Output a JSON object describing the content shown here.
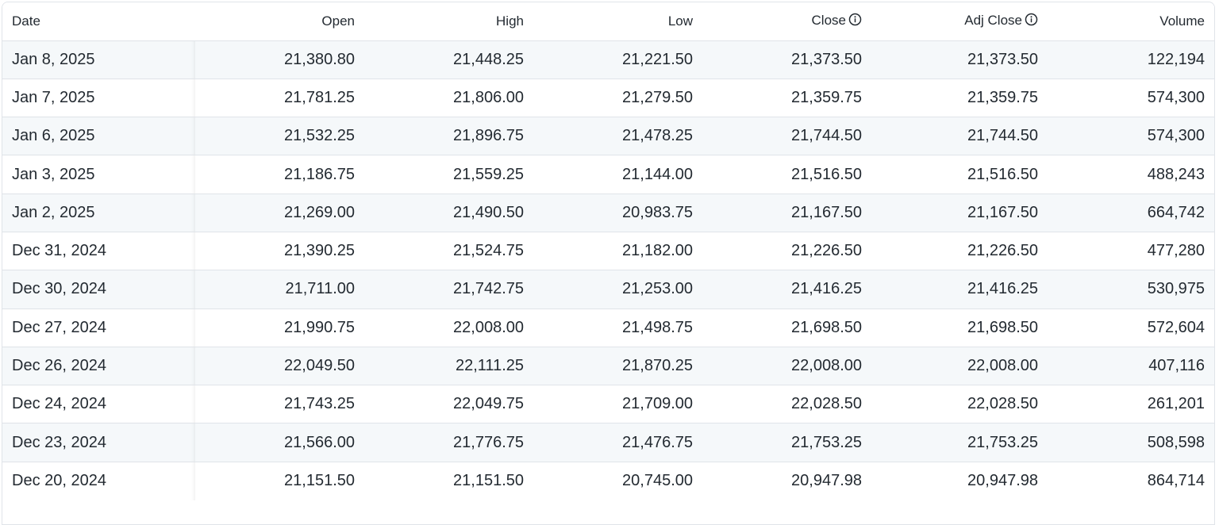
{
  "table": {
    "columns": {
      "date": "Date",
      "open": "Open",
      "high": "High",
      "low": "Low",
      "close": "Close",
      "adj_close": "Adj Close",
      "volume": "Volume"
    },
    "icons": {
      "close_info": "info-icon",
      "adj_close_info": "info-icon"
    },
    "rows": [
      {
        "date": "Jan 8, 2025",
        "open": "21,380.80",
        "high": "21,448.25",
        "low": "21,221.50",
        "close": "21,373.50",
        "adj_close": "21,373.50",
        "volume": "122,194"
      },
      {
        "date": "Jan 7, 2025",
        "open": "21,781.25",
        "high": "21,806.00",
        "low": "21,279.50",
        "close": "21,359.75",
        "adj_close": "21,359.75",
        "volume": "574,300"
      },
      {
        "date": "Jan 6, 2025",
        "open": "21,532.25",
        "high": "21,896.75",
        "low": "21,478.25",
        "close": "21,744.50",
        "adj_close": "21,744.50",
        "volume": "574,300"
      },
      {
        "date": "Jan 3, 2025",
        "open": "21,186.75",
        "high": "21,559.25",
        "low": "21,144.00",
        "close": "21,516.50",
        "adj_close": "21,516.50",
        "volume": "488,243"
      },
      {
        "date": "Jan 2, 2025",
        "open": "21,269.00",
        "high": "21,490.50",
        "low": "20,983.75",
        "close": "21,167.50",
        "adj_close": "21,167.50",
        "volume": "664,742"
      },
      {
        "date": "Dec 31, 2024",
        "open": "21,390.25",
        "high": "21,524.75",
        "low": "21,182.00",
        "close": "21,226.50",
        "adj_close": "21,226.50",
        "volume": "477,280"
      },
      {
        "date": "Dec 30, 2024",
        "open": "21,711.00",
        "high": "21,742.75",
        "low": "21,253.00",
        "close": "21,416.25",
        "adj_close": "21,416.25",
        "volume": "530,975"
      },
      {
        "date": "Dec 27, 2024",
        "open": "21,990.75",
        "high": "22,008.00",
        "low": "21,498.75",
        "close": "21,698.50",
        "adj_close": "21,698.50",
        "volume": "572,604"
      },
      {
        "date": "Dec 26, 2024",
        "open": "22,049.50",
        "high": "22,111.25",
        "low": "21,870.25",
        "close": "22,008.00",
        "adj_close": "22,008.00",
        "volume": "407,116"
      },
      {
        "date": "Dec 24, 2024",
        "open": "21,743.25",
        "high": "22,049.75",
        "low": "21,709.00",
        "close": "22,028.50",
        "adj_close": "22,028.50",
        "volume": "261,201"
      },
      {
        "date": "Dec 23, 2024",
        "open": "21,566.00",
        "high": "21,776.75",
        "low": "21,476.75",
        "close": "21,753.25",
        "adj_close": "21,753.25",
        "volume": "508,598"
      },
      {
        "date": "Dec 20, 2024",
        "open": "21,151.50",
        "high": "21,151.50",
        "low": "20,745.00",
        "close": "20,947.98",
        "adj_close": "20,947.98",
        "volume": "864,714"
      }
    ]
  }
}
